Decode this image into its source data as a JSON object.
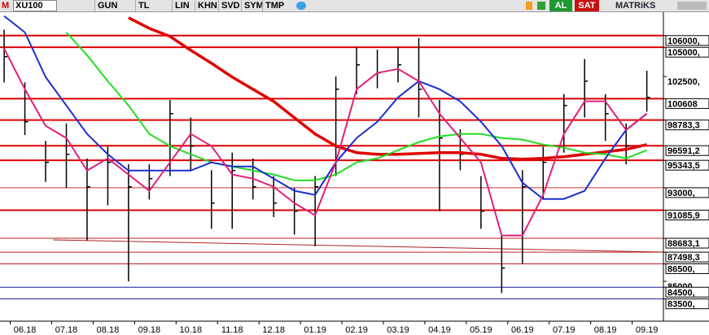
{
  "toolbar": {
    "logo": "M",
    "symbol": "XU100",
    "buttons": [
      "GUN",
      "TL",
      "LIN",
      "KHN",
      "SVD",
      "SYM",
      "TMP"
    ],
    "buy": "AL",
    "sell": "SAT",
    "brand": "MATRiKS"
  },
  "chart_data": {
    "type": "ohlc",
    "x": [
      -0.5,
      0,
      0.5,
      1,
      1.5,
      2,
      2.5,
      3,
      3.5,
      4,
      4.5,
      5,
      5.5,
      6,
      6.5,
      7,
      7.5,
      8,
      8.5,
      9,
      9.5,
      10,
      10.5,
      11,
      11.5,
      12,
      12.5,
      13,
      13.5,
      14,
      14.5,
      15
    ],
    "xlim": [
      -0.6,
      15.4
    ],
    "xticks": [
      {
        "value": 0,
        "label": "06.18"
      },
      {
        "value": 1,
        "label": "07.18"
      },
      {
        "value": 2,
        "label": "08.18"
      },
      {
        "value": 3,
        "label": "09.18"
      },
      {
        "value": 4,
        "label": "10.18"
      },
      {
        "value": 5,
        "label": "11.18"
      },
      {
        "value": 6,
        "label": "12.18"
      },
      {
        "value": 7,
        "label": "01.19"
      },
      {
        "value": 8,
        "label": "02.19"
      },
      {
        "value": 9,
        "label": "03.19"
      },
      {
        "value": 10,
        "label": "04.19"
      },
      {
        "value": 11,
        "label": "05.19"
      },
      {
        "value": 12,
        "label": "06.19"
      },
      {
        "value": 13,
        "label": "07.19"
      },
      {
        "value": 14,
        "label": "08.19"
      },
      {
        "value": 15,
        "label": "09.19"
      }
    ],
    "ylim": [
      81600,
      108000
    ],
    "yticks": [
      {
        "value": 106000,
        "label": "106000,"
      },
      {
        "value": 105000,
        "label": "105000,"
      },
      {
        "value": 102500,
        "label": "102500,"
      },
      {
        "value": 100608,
        "label": "100608"
      },
      {
        "value": 98783.3,
        "label": "98783,3"
      },
      {
        "value": 96591.2,
        "label": "96591,2"
      },
      {
        "value": 95343.5,
        "label": "95343,5"
      },
      {
        "value": 93000,
        "label": "93000,"
      },
      {
        "value": 91085.9,
        "label": "91085,9"
      },
      {
        "value": 88683.1,
        "label": "88683,1"
      },
      {
        "value": 87498.3,
        "label": "87498,3"
      },
      {
        "value": 86500,
        "label": "86500,"
      },
      {
        "value": 85000,
        "label": "85000,"
      },
      {
        "value": 84500,
        "label": "84500,"
      },
      {
        "value": 83500,
        "label": "83500,"
      }
    ],
    "levels": [
      {
        "value": 106000,
        "color": "#e00000",
        "width": 2
      },
      {
        "value": 105000,
        "color": "#e00000",
        "width": 2
      },
      {
        "value": 100608,
        "color": "#e00000",
        "width": 2
      },
      {
        "value": 98783.3,
        "color": "#e00000",
        "width": 2
      },
      {
        "value": 96591.2,
        "color": "#e00000",
        "width": 2
      },
      {
        "value": 95343.5,
        "color": "#e00000",
        "width": 2
      },
      {
        "value": 93000,
        "color": "#d03030",
        "width": 1
      },
      {
        "value": 91085.9,
        "color": "#e00000",
        "width": 2
      },
      {
        "value": 88683.1,
        "color": "#c02020",
        "width": 1
      },
      {
        "value": 87498.3,
        "color": "#c02020",
        "width": 1
      },
      {
        "value": 86500,
        "color": "#c02020",
        "width": 1
      },
      {
        "value": 84500,
        "color": "#1a1a9a",
        "width": 1
      },
      {
        "value": 83500,
        "color": "#1a1a9a",
        "width": 1
      }
    ],
    "series": [
      {
        "type": "ohlc",
        "color": "#000000",
        "high": [
          106500,
          102000,
          97000,
          98500,
          95500,
          96500,
          95000,
          95000,
          100500,
          99000,
          94500,
          96000,
          95500,
          94000,
          93000,
          94000,
          102500,
          105000,
          104800,
          105000,
          105800,
          100500,
          98000,
          94000,
          89000,
          94500,
          96500,
          101000,
          104000,
          101000,
          98500,
          103000
        ],
        "low": [
          102000,
          97500,
          93500,
          93000,
          88500,
          91500,
          85000,
          92000,
          94000,
          94500,
          89500,
          89500,
          92000,
          90500,
          89000,
          88000,
          94000,
          101000,
          101500,
          102000,
          99000,
          91000,
          94500,
          89500,
          84000,
          86500,
          92000,
          96000,
          99000,
          97000,
          95000,
          99500
        ],
        "close": [
          104200,
          98640,
          95170,
          95860,
          93080,
          95170,
          93080,
          93780,
          99330,
          96560,
          91690,
          94470,
          93080,
          91690,
          91000,
          93080,
          101420,
          103500,
          102810,
          103500,
          101420,
          97250,
          95860,
          91000,
          86140,
          93080,
          95170,
          100030,
          102110,
          99330,
          96560,
          100720
        ]
      },
      {
        "type": "line",
        "color": "#e00000",
        "width": 3.5,
        "values": [
          null,
          null,
          null,
          null,
          null,
          null,
          107530,
          106620,
          105930,
          104750,
          103640,
          102460,
          101420,
          100380,
          98990,
          97600,
          96560,
          96000,
          95860,
          95860,
          95930,
          96000,
          96000,
          95860,
          95510,
          95440,
          95510,
          95650,
          95860,
          96070,
          96280,
          96690
        ]
      },
      {
        "type": "line",
        "color": "#22dd22",
        "width": 2,
        "values": [
          null,
          null,
          null,
          106280,
          104330,
          102110,
          100030,
          97600,
          96560,
          95860,
          95170,
          94820,
          94470,
          94130,
          93640,
          93640,
          94130,
          95170,
          95510,
          96210,
          96900,
          97390,
          97600,
          97600,
          97250,
          97110,
          96690,
          96420,
          96000,
          95860,
          95510,
          96210
        ]
      },
      {
        "type": "line",
        "color": "#1a2fcc",
        "width": 2,
        "values": [
          107670,
          106280,
          102460,
          100030,
          97600,
          95860,
          94470,
          94470,
          94470,
          94470,
          95170,
          94820,
          94820,
          93780,
          92740,
          92390,
          95170,
          97250,
          98640,
          100720,
          102110,
          101420,
          100380,
          98640,
          96560,
          93430,
          92040,
          92040,
          92740,
          95510,
          97940,
          99330
        ]
      },
      {
        "type": "line",
        "color": "#e0207a",
        "width": 2,
        "values": [
          104890,
          101420,
          98290,
          97250,
          94470,
          95510,
          94130,
          92740,
          95170,
          97600,
          96560,
          94130,
          93780,
          93080,
          91690,
          90650,
          95170,
          101420,
          102810,
          103150,
          102110,
          99330,
          97250,
          95170,
          88920,
          88920,
          92390,
          97600,
          100380,
          100380,
          97940,
          99330
        ]
      }
    ]
  }
}
